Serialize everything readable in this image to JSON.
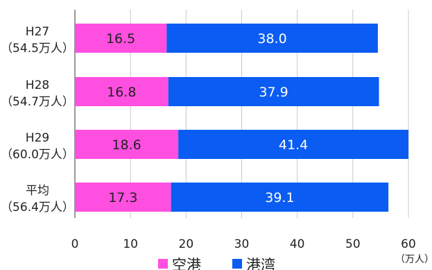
{
  "chart_data": {
    "type": "bar",
    "orientation": "horizontal",
    "stacked": true,
    "categories": [
      {
        "line1": "H27",
        "line2": "（54.5万人）"
      },
      {
        "line1": "H28",
        "line2": "（54.7万人）"
      },
      {
        "line1": "H29",
        "line2": "（60.0万人）"
      },
      {
        "line1": "平均",
        "line2": "（56.4万人）"
      }
    ],
    "series": [
      {
        "name": "空港",
        "color": "#ff4fe0",
        "label_color": "#222222",
        "values": [
          16.5,
          16.8,
          18.6,
          17.3
        ]
      },
      {
        "name": "港湾",
        "color": "#0a5cf2",
        "label_color": "#ffffff",
        "values": [
          38.0,
          37.9,
          41.4,
          39.1
        ]
      }
    ],
    "xlim": [
      0,
      60
    ],
    "xticks": [
      0,
      10,
      20,
      30,
      40,
      50,
      60
    ],
    "x_unit": "（万人）",
    "grid": "vertical",
    "legend": "bottom"
  }
}
